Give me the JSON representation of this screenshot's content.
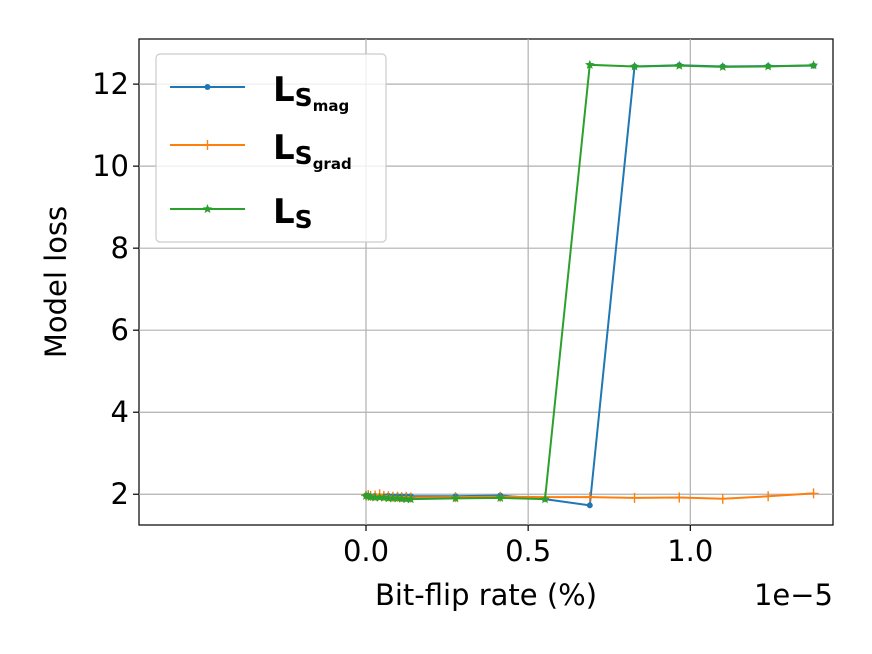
{
  "chart_data": {
    "type": "line",
    "title": "",
    "xlabel": "Bit-flip rate (%)",
    "ylabel": "Model loss",
    "x_offset_text": "1e−5",
    "xlim": [
      -7e-06,
      1.44e-05
    ],
    "ylim": [
      1.25,
      13.1
    ],
    "xticks": [
      0.0,
      5e-06,
      1e-05
    ],
    "xtick_labels": [
      "0.0",
      "0.5",
      "1.0"
    ],
    "yticks": [
      2,
      4,
      6,
      8,
      10,
      12
    ],
    "ytick_labels": [
      "2",
      "4",
      "6",
      "8",
      "10",
      "12"
    ],
    "grid": true,
    "legend_position": "upper-left",
    "series": [
      {
        "name": "L",
        "subscript": "S",
        "sub_subscript": "mag",
        "color": "#1f77b4",
        "marker": "dot",
        "x": [
          0.0,
          7e-08,
          1.4e-07,
          2.8e-07,
          4.2e-07,
          5.5e-07,
          6.9e-07,
          8.3e-07,
          9.7e-07,
          1.1e-06,
          1.24e-06,
          1.38e-06,
          2.76e-06,
          4.14e-06,
          5.52e-06,
          6.9e-06,
          8.28e-06,
          9.66e-06,
          1.1e-05,
          1.24e-05,
          1.38e-05
        ],
        "y": [
          1.97,
          1.96,
          1.95,
          1.96,
          1.95,
          1.95,
          1.96,
          1.95,
          1.95,
          1.95,
          1.95,
          1.95,
          1.95,
          1.97,
          1.88,
          1.73,
          12.43,
          12.46,
          12.43,
          12.44,
          12.45
        ]
      },
      {
        "name": "L",
        "subscript": "S",
        "sub_subscript": "grad",
        "color": "#ff7f0e",
        "marker": "plus",
        "x": [
          0.0,
          7e-08,
          1.4e-07,
          2.8e-07,
          4.2e-07,
          5.5e-07,
          6.9e-07,
          8.3e-07,
          9.7e-07,
          1.1e-06,
          1.24e-06,
          1.38e-06,
          2.76e-06,
          4.14e-06,
          5.52e-06,
          6.9e-06,
          8.28e-06,
          9.66e-06,
          1.1e-05,
          1.24e-05,
          1.38e-05
        ],
        "y": [
          1.97,
          1.98,
          1.96,
          1.97,
          2.0,
          1.96,
          1.95,
          1.94,
          1.94,
          1.93,
          1.94,
          1.92,
          1.93,
          1.94,
          1.93,
          1.93,
          1.91,
          1.92,
          1.89,
          1.95,
          2.02
        ]
      },
      {
        "name": "L",
        "subscript": "S",
        "sub_subscript": "",
        "color": "#2ca02c",
        "marker": "star",
        "x": [
          0.0,
          7e-08,
          1.4e-07,
          2.8e-07,
          4.2e-07,
          5.5e-07,
          6.9e-07,
          8.3e-07,
          9.7e-07,
          1.1e-06,
          1.24e-06,
          1.38e-06,
          2.76e-06,
          4.14e-06,
          5.52e-06,
          6.9e-06,
          8.28e-06,
          9.66e-06,
          1.1e-05,
          1.24e-05,
          1.38e-05
        ],
        "y": [
          1.96,
          1.95,
          1.93,
          1.92,
          1.92,
          1.92,
          1.9,
          1.9,
          1.9,
          1.89,
          1.88,
          1.88,
          1.9,
          1.91,
          1.88,
          12.47,
          12.43,
          12.45,
          12.42,
          12.43,
          12.46
        ]
      }
    ]
  }
}
